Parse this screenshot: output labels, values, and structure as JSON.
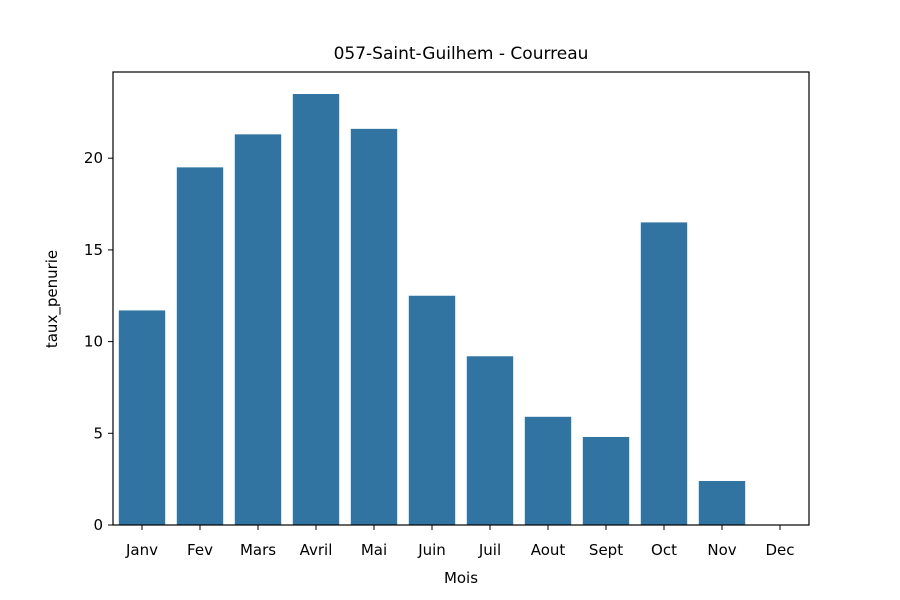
{
  "chart_data": {
    "type": "bar",
    "title": "057-Saint-Guilhem - Courreau",
    "xlabel": "Mois",
    "ylabel": "taux_penurie",
    "categories": [
      "Janv",
      "Fev",
      "Mars",
      "Avril",
      "Mai",
      "Juin",
      "Juil",
      "Aout",
      "Sept",
      "Oct",
      "Nov",
      "Dec"
    ],
    "values": [
      11.7,
      19.5,
      21.3,
      23.5,
      21.6,
      12.5,
      9.2,
      5.9,
      4.8,
      16.5,
      2.4,
      0
    ],
    "ylim": [
      0,
      24.7
    ],
    "yticks": [
      0,
      5,
      10,
      15,
      20
    ],
    "bar_color": "#3274a1",
    "grid": false,
    "legend": "none"
  }
}
